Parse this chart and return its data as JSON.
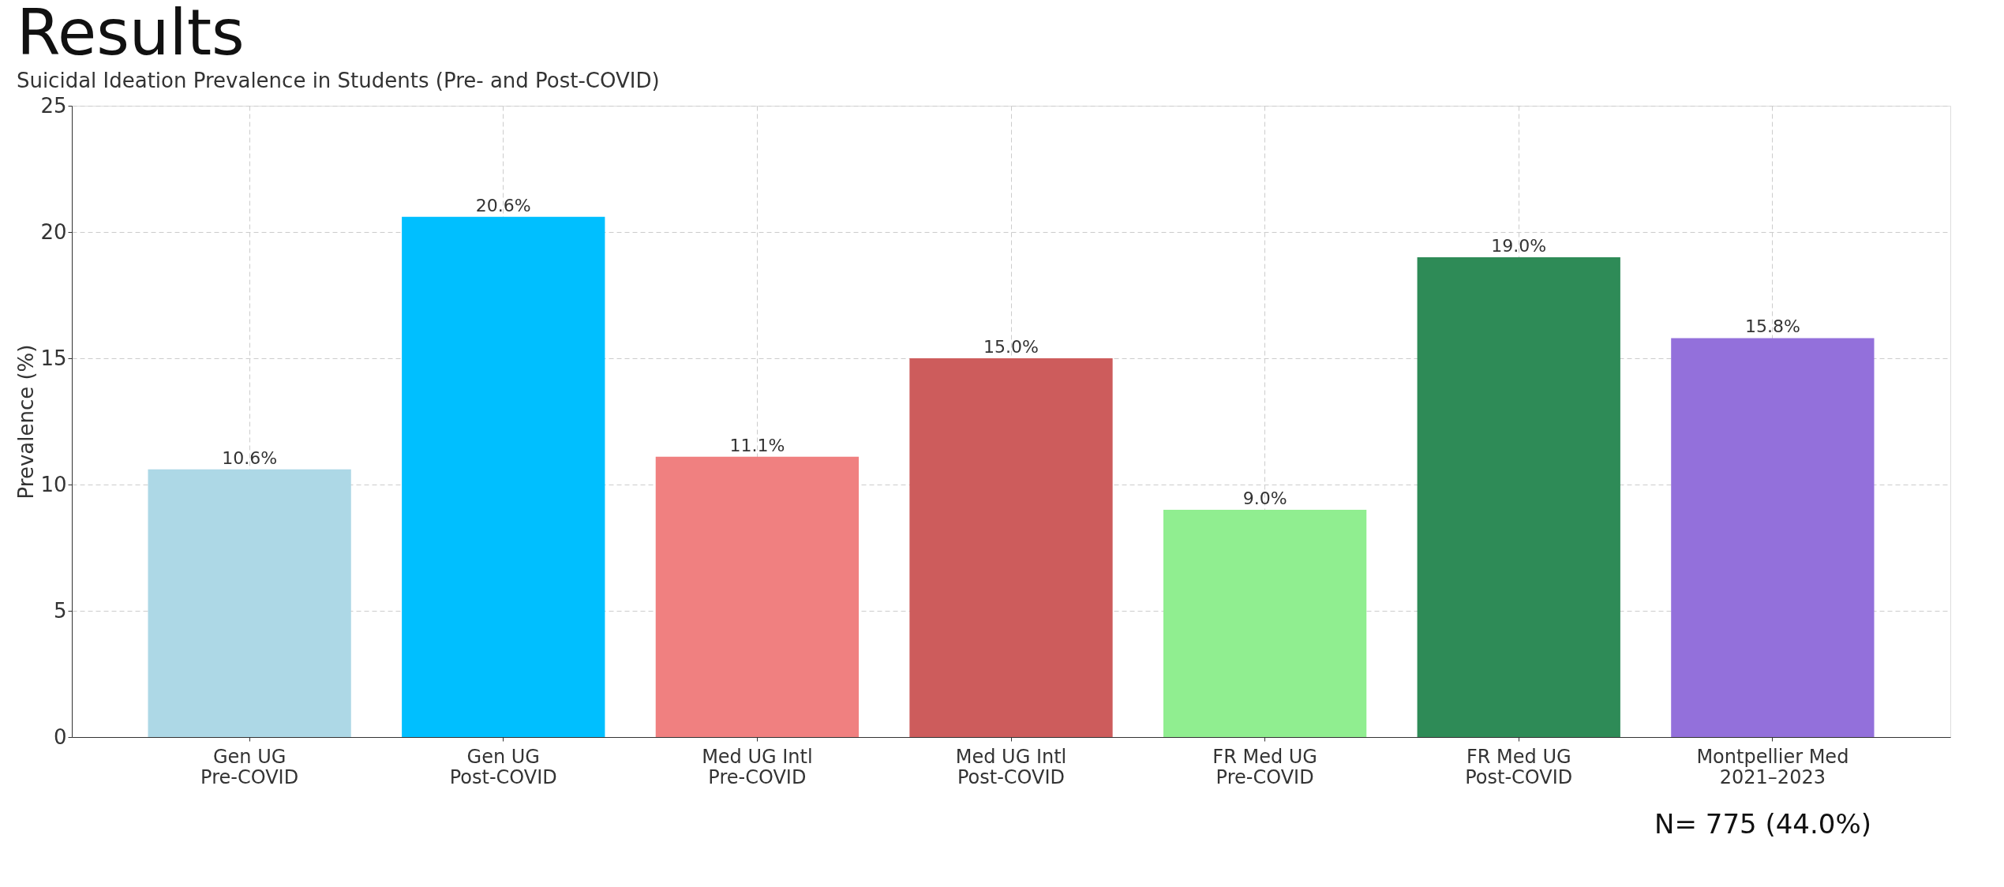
{
  "chart_data": {
    "type": "bar",
    "title": "Results",
    "subtitle": "Suicidal Ideation Prevalence in Students (Pre- and Post-COVID)",
    "ylabel": "Prevalence (%)",
    "categories": [
      "Gen UG\nPre-COVID",
      "Gen UG\nPost-COVID",
      "Med UG Intl\nPre-COVID",
      "Med UG Intl\nPost-COVID",
      "FR Med UG\nPre-COVID",
      "FR Med UG\nPost-COVID",
      "Montpellier Med\n2021–2023"
    ],
    "values": [
      10.6,
      20.6,
      11.1,
      15.0,
      9.0,
      19.0,
      15.8
    ],
    "colors": [
      "#add8e6",
      "#00bfff",
      "#f08080",
      "#cd5c5c",
      "#90ee90",
      "#2e8b57",
      "#9370db"
    ],
    "value_labels": [
      "10.6%",
      "20.6%",
      "11.1%",
      "15.0%",
      "9.0%",
      "19.0%",
      "15.8%"
    ],
    "ylim": [
      0,
      25
    ],
    "yticks": [
      0,
      5,
      10,
      15,
      20,
      25
    ],
    "grid": true,
    "annotations": [
      "N= 775 (44.0%)"
    ]
  }
}
